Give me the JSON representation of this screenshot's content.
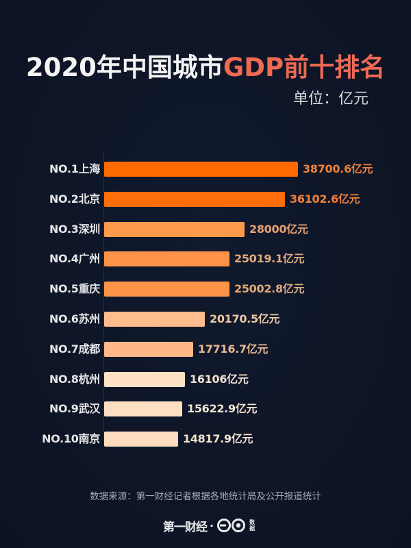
{
  "title": {
    "prefix": "2020年中国城市",
    "highlight": "GDP前十排名"
  },
  "unit_label": "单位：亿元",
  "source_text": "数据来源：第一财经记者根据各地统计局及公开报道统计",
  "logo": {
    "brand": "第一财经",
    "separator": "·",
    "tag": "数据"
  },
  "colors": {
    "background": "#0d1526",
    "title": "#f4f4f4",
    "title_highlight": "#ef6a55"
  },
  "chart_data": {
    "type": "bar",
    "orientation": "horizontal",
    "title": "2020年中国城市GDP前十排名",
    "unit": "亿元",
    "xlabel": "",
    "ylabel": "",
    "grid": false,
    "legend": null,
    "categories": [
      "NO.1上海",
      "NO.2北京",
      "NO.3深圳",
      "NO.4广州",
      "NO.5重庆",
      "NO.6苏州",
      "NO.7成都",
      "NO.8杭州",
      "NO.9武汉",
      "NO.10南京"
    ],
    "values": [
      38700.6,
      36102.6,
      28000,
      25019.1,
      25002.8,
      20170.5,
      17716.7,
      16106,
      15622.9,
      14817.9
    ],
    "value_labels": [
      "38700.6亿元",
      "36102.6亿元",
      "28000亿元",
      "25019.1亿元",
      "25002.8亿元",
      "20170.5亿元",
      "17716.7亿元",
      "16106亿元",
      "15622.9亿元",
      "14817.9亿元"
    ],
    "bar_colors": [
      "#ff6a00",
      "#ff6e0a",
      "#ff9a4c",
      "#ff9448",
      "#ff9448",
      "#ffbd8e",
      "#ffb787",
      "#ffe2c6",
      "#ffdfc2",
      "#ffdcbd"
    ],
    "label_colors": [
      "#f0813a",
      "#f0813a",
      "#e8a070",
      "#e0aa7c",
      "#e0aa7c",
      "#ecc8a6",
      "#e8b890",
      "#f2e2d0",
      "#f2e2d0",
      "#f2e2d0"
    ]
  }
}
